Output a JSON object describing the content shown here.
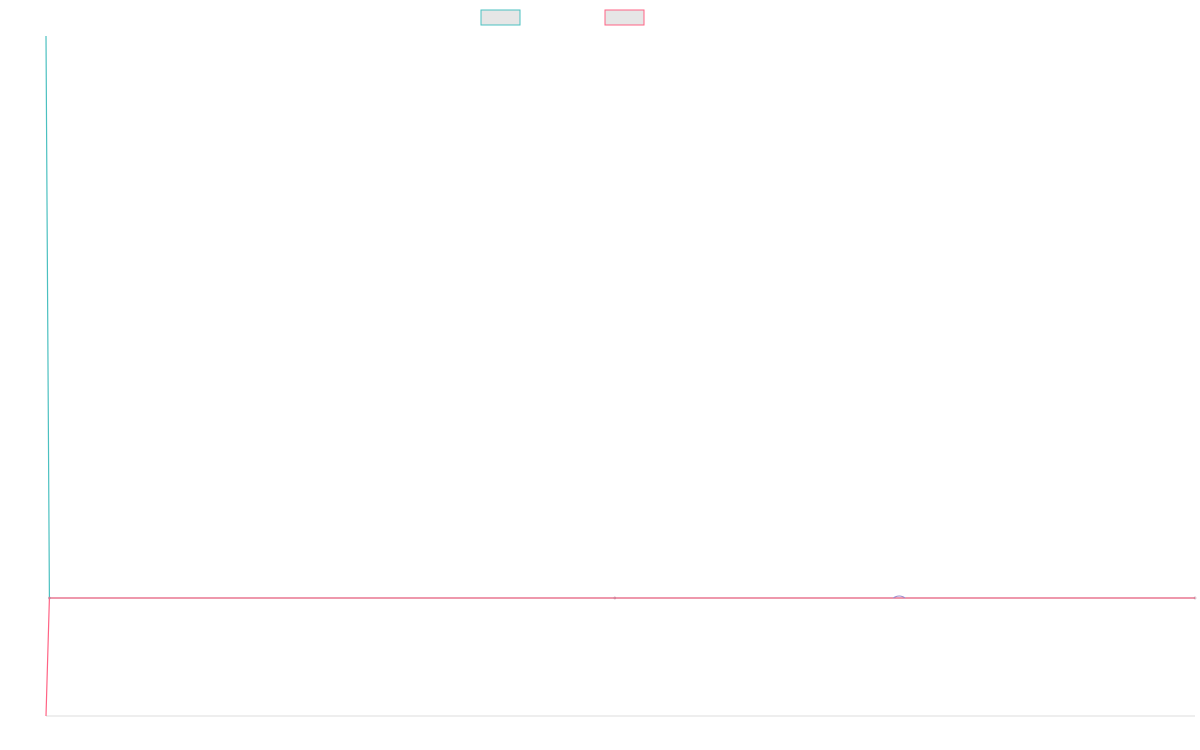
{
  "chart_data": {
    "type": "line",
    "title": "",
    "xlabel": "",
    "ylabel": "",
    "grid": false,
    "legend": "top-center",
    "x": [
      0,
      0.6,
      100,
      202
    ],
    "series": [
      {
        "color": "#4bc0c0",
        "values": [
          100,
          0,
          0,
          0
        ]
      },
      {
        "color": "#ff6384",
        "values": [
          -21,
          0,
          0,
          0
        ]
      }
    ],
    "xlim": [
      0,
      202
    ],
    "ylim": [
      -21,
      100
    ]
  },
  "colors": {
    "axis": "#dddddd",
    "legend_fill": "#e6e6e6"
  }
}
